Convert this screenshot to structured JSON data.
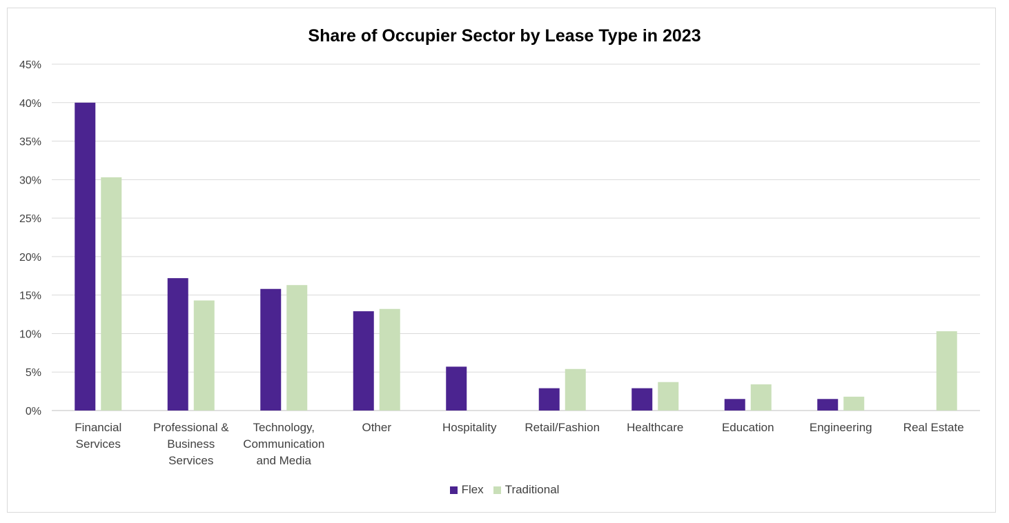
{
  "chart_data": {
    "type": "bar",
    "title": "Share of Occupier Sector by Lease Type in 2023",
    "xlabel": "",
    "ylabel": "",
    "ylim": [
      0,
      45
    ],
    "y_ticks": [
      "0%",
      "5%",
      "10%",
      "15%",
      "20%",
      "25%",
      "30%",
      "35%",
      "40%",
      "45%"
    ],
    "grid": true,
    "legend_position": "bottom",
    "categories": [
      [
        "Financial",
        "Services"
      ],
      [
        "Professional &",
        "Business",
        "Services"
      ],
      [
        "Technology,",
        "Communication",
        "and Media"
      ],
      [
        "Other"
      ],
      [
        "Hospitality"
      ],
      [
        "Retail/Fashion"
      ],
      [
        "Healthcare"
      ],
      [
        "Education"
      ],
      [
        "Engineering"
      ],
      [
        "Real Estate"
      ]
    ],
    "series": [
      {
        "name": "Flex",
        "color": "#4b2490",
        "values": [
          40.0,
          17.2,
          15.8,
          12.9,
          5.7,
          2.9,
          2.9,
          1.5,
          1.5,
          0
        ]
      },
      {
        "name": "Traditional",
        "color": "#c9dfb8",
        "values": [
          30.3,
          14.3,
          16.3,
          13.2,
          0,
          5.4,
          3.7,
          3.4,
          1.8,
          10.3
        ]
      }
    ]
  }
}
